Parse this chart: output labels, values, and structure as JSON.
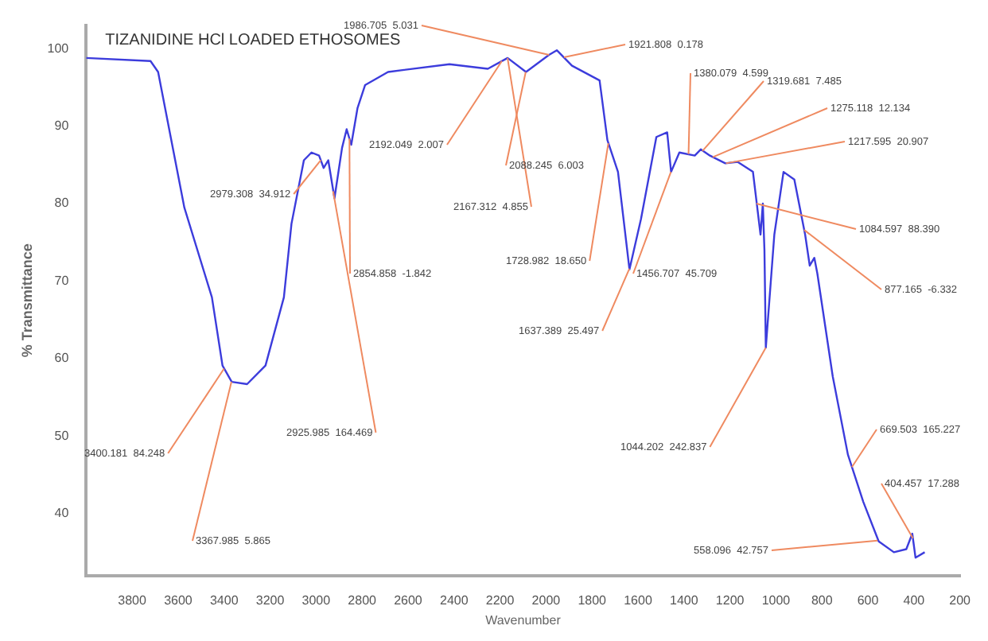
{
  "chart_data": {
    "type": "line",
    "title": "TIZANIDINE HCl LOADED ETHOSOMES",
    "xlabel": "Wavenumber",
    "ylabel": "% Transmittance",
    "x": [
      4000,
      3720,
      3687,
      3573,
      3453,
      3407,
      3367,
      3300,
      3220,
      3140,
      3107,
      3053,
      3020,
      2987,
      2967,
      2947,
      2920,
      2887,
      2867,
      2847,
      2820,
      2787,
      2687,
      2420,
      2253,
      2167,
      2087,
      1987,
      1953,
      1887,
      1767,
      1733,
      1687,
      1637,
      1587,
      1520,
      1473,
      1456,
      1420,
      1353,
      1327,
      1287,
      1220,
      1167,
      1100,
      1067,
      1057,
      1050,
      1044,
      1007,
      967,
      920,
      873,
      853,
      833,
      820,
      753,
      687,
      620,
      553,
      487,
      433,
      407,
      393,
      353
    ],
    "series": [
      {
        "color": "#3c3cdc",
        "values": [
          98.8,
          98.4,
          97,
          79.5,
          67.9,
          59.1,
          57,
          56.7,
          59.1,
          67.9,
          77.4,
          85.6,
          86.6,
          86.2,
          84.6,
          85.6,
          80.7,
          87.2,
          89.6,
          87.6,
          92.3,
          95.3,
          97,
          98,
          97.4,
          98.8,
          97,
          99.2,
          99.8,
          97.8,
          95.9,
          88.2,
          84.1,
          71.5,
          78,
          88.6,
          89.2,
          84.1,
          86.6,
          86.2,
          87,
          86.2,
          85.2,
          85.4,
          84.1,
          76,
          80,
          74,
          61.4,
          76,
          84.1,
          83.1,
          76,
          72,
          73,
          71,
          57.7,
          47.6,
          41.5,
          36.4,
          35,
          35.4,
          37.4,
          34.3,
          35
        ]
      }
    ],
    "xlim": [
      4000,
      200
    ],
    "xticks": [
      3800,
      3600,
      3400,
      3200,
      3000,
      2800,
      2600,
      2400,
      2200,
      2000,
      1800,
      1600,
      1400,
      1200,
      1000,
      800,
      600,
      400,
      200
    ],
    "ylim": [
      32,
      103
    ],
    "yticks": [
      40,
      50,
      60,
      70,
      80,
      90,
      100
    ],
    "grid": false,
    "legend": false,
    "marker": "none",
    "line_style": "solid",
    "annotations": [
      {
        "text": "1986.705  5.031",
        "x": 1986.705,
        "y": 99.2
      },
      {
        "text": "1921.808  0.178",
        "x": 1921.808,
        "y": 98.9
      },
      {
        "text": "2192.049  2.007",
        "x": 2192.049,
        "y": 98.4
      },
      {
        "text": "2167.312  4.855",
        "x": 2167.312,
        "y": 98.8
      },
      {
        "text": "2088.245  6.003",
        "x": 2088.245,
        "y": 97
      },
      {
        "text": "2979.308  34.912",
        "x": 2979.308,
        "y": 85.6
      },
      {
        "text": "2854.858  -1.842",
        "x": 2854.858,
        "y": 88.4
      },
      {
        "text": "2925.985  164.469",
        "x": 2925.985,
        "y": 81.6
      },
      {
        "text": "3400.181  84.248",
        "x": 3400.181,
        "y": 58.7
      },
      {
        "text": "3367.985  5.865",
        "x": 3367.985,
        "y": 57
      },
      {
        "text": "1728.982  18.650",
        "x": 1728.982,
        "y": 87.8
      },
      {
        "text": "1637.389  25.497",
        "x": 1637.389,
        "y": 71.6
      },
      {
        "text": "1456.707  45.709",
        "x": 1456.707,
        "y": 84.1
      },
      {
        "text": "1380.079  4.599",
        "x": 1380.079,
        "y": 86.4
      },
      {
        "text": "1319.681  7.485",
        "x": 1319.681,
        "y": 86.8
      },
      {
        "text": "1275.118  12.134",
        "x": 1275.118,
        "y": 86
      },
      {
        "text": "1217.595  20.907",
        "x": 1217.595,
        "y": 85.2
      },
      {
        "text": "1084.597  88.390",
        "x": 1084.597,
        "y": 80
      },
      {
        "text": "877.165  -6.332",
        "x": 877.165,
        "y": 76.6
      },
      {
        "text": "1044.202  242.837",
        "x": 1044.202,
        "y": 61.4
      },
      {
        "text": "669.503  165.227",
        "x": 669.503,
        "y": 46
      },
      {
        "text": "404.457  17.288",
        "x": 404.457,
        "y": 36.8
      },
      {
        "text": "558.096  42.757",
        "x": 558.096,
        "y": 36.5
      }
    ]
  }
}
